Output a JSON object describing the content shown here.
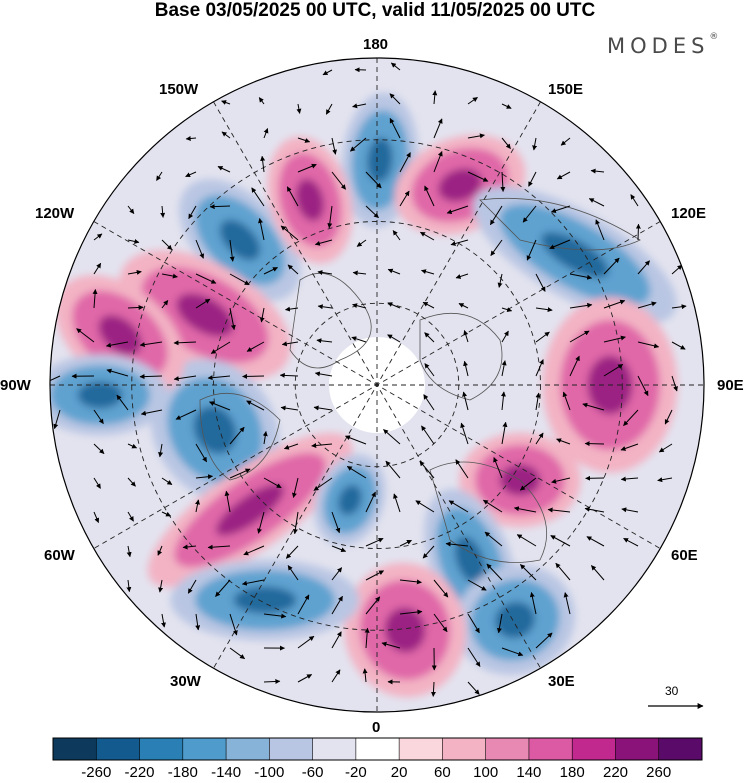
{
  "title": "Base 03/05/2025 00 UTC, valid 11/05/2025 00 UTC",
  "brand": {
    "name": "MODES",
    "mark": "®"
  },
  "meridian_labels": {
    "top": "180",
    "top_right": "150E",
    "top_left": "150W",
    "upper_right": "120E",
    "upper_left": "120W",
    "right": "90E",
    "left": "90W",
    "lower_right": "60E",
    "lower_left": "60W",
    "bottom_right": "30E",
    "bottom_left": "30W",
    "bottom": "0"
  },
  "reference_vector": {
    "label": "30"
  },
  "colorbar": {
    "labels": [
      "-260",
      "-220",
      "-180",
      "-140",
      "-100",
      "-60",
      "-20",
      "20",
      "60",
      "100",
      "140",
      "180",
      "220",
      "260"
    ],
    "colors": [
      "#0d3a5c",
      "#135b8e",
      "#2a7fb5",
      "#4e9bcc",
      "#87b3d9",
      "#b9c6e3",
      "#e3e3ef",
      "#ffffff",
      "#f9d7dd",
      "#f3b3c4",
      "#e889b3",
      "#dc5aa3",
      "#c1298f",
      "#8a1379",
      "#5a0a68"
    ]
  },
  "anomaly_palette": {
    "pos_strong": "#8a1379",
    "pos_mid": "#dc5aa3",
    "pos_weak": "#f3b3c4",
    "neg_strong": "#135b8e",
    "neg_mid": "#4e9bcc",
    "neg_weak": "#b9c6e3",
    "neutral": "#e3e3ef"
  }
}
